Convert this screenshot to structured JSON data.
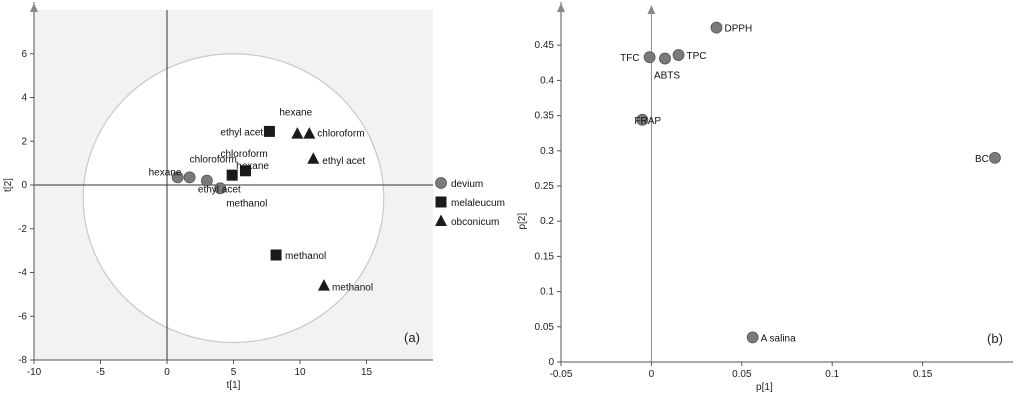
{
  "chart_data": [
    {
      "type": "scatter",
      "panel_label": "(a)",
      "xlabel": "t[1]",
      "ylabel": "t[2]",
      "xlim": [
        -10,
        20
      ],
      "ylim": [
        -8,
        8
      ],
      "x_ticks": [
        -10,
        -5,
        0,
        5,
        10,
        15
      ],
      "y_ticks": [
        -8,
        -6,
        -4,
        -2,
        0,
        2,
        4,
        6
      ],
      "ellipse": {
        "cx": 5,
        "cy": -0.6,
        "rx": 11.3,
        "ry": 6.6
      },
      "legend": [
        {
          "name": "devium",
          "marker": "circle"
        },
        {
          "name": "melaleucum",
          "marker": "square"
        },
        {
          "name": "obconicum",
          "marker": "triangle"
        }
      ],
      "series": [
        {
          "name": "devium",
          "marker": "circle",
          "points": [
            {
              "x": 0.8,
              "y": 0.35,
              "label": "hexane"
            },
            {
              "x": 1.7,
              "y": 0.35,
              "label": "chloroform"
            },
            {
              "x": 3.0,
              "y": 0.2,
              "label": "ethyl acet"
            },
            {
              "x": 4.0,
              "y": -0.15,
              "label": "methanol"
            }
          ]
        },
        {
          "name": "melaleucum",
          "marker": "square",
          "points": [
            {
              "x": 7.7,
              "y": 2.45,
              "label": "ethyl acet"
            },
            {
              "x": 5.9,
              "y": 0.65,
              "label": "chloroform"
            },
            {
              "x": 4.9,
              "y": 0.45,
              "label": "hexane"
            },
            {
              "x": 8.2,
              "y": -3.2,
              "label": "methanol"
            }
          ]
        },
        {
          "name": "obconicum",
          "marker": "triangle",
          "points": [
            {
              "x": 9.8,
              "y": 2.35,
              "label": "hexane"
            },
            {
              "x": 10.7,
              "y": 2.35,
              "label": "chloroform"
            },
            {
              "x": 11.0,
              "y": 1.2,
              "label": "ethyl acet"
            },
            {
              "x": 11.8,
              "y": -4.6,
              "label": "methanol"
            }
          ]
        }
      ]
    },
    {
      "type": "scatter",
      "panel_label": "(b)",
      "xlabel": "p[1]",
      "ylabel": "p[2]",
      "xlim": [
        -0.05,
        0.2
      ],
      "ylim": [
        0,
        0.5
      ],
      "x_ticks": [
        "-0.05",
        "0",
        "0.05",
        "0.1",
        "0.15"
      ],
      "y_ticks": [
        "0",
        "0.05",
        "0.1",
        "0.15",
        "0.2",
        "0.25",
        "0.3",
        "0.35",
        "0.4",
        "0.45"
      ],
      "points": [
        {
          "x": 0.036,
          "y": 0.475,
          "label": "DPPH"
        },
        {
          "x": -0.001,
          "y": 0.433,
          "label": "TFC"
        },
        {
          "x": 0.0075,
          "y": 0.431,
          "label": "ABTS"
        },
        {
          "x": 0.015,
          "y": 0.436,
          "label": "TPC"
        },
        {
          "x": -0.005,
          "y": 0.344,
          "label": "FRAP"
        },
        {
          "x": 0.19,
          "y": 0.29,
          "label": "BC"
        },
        {
          "x": 0.056,
          "y": 0.035,
          "label": "A salina"
        }
      ]
    }
  ]
}
